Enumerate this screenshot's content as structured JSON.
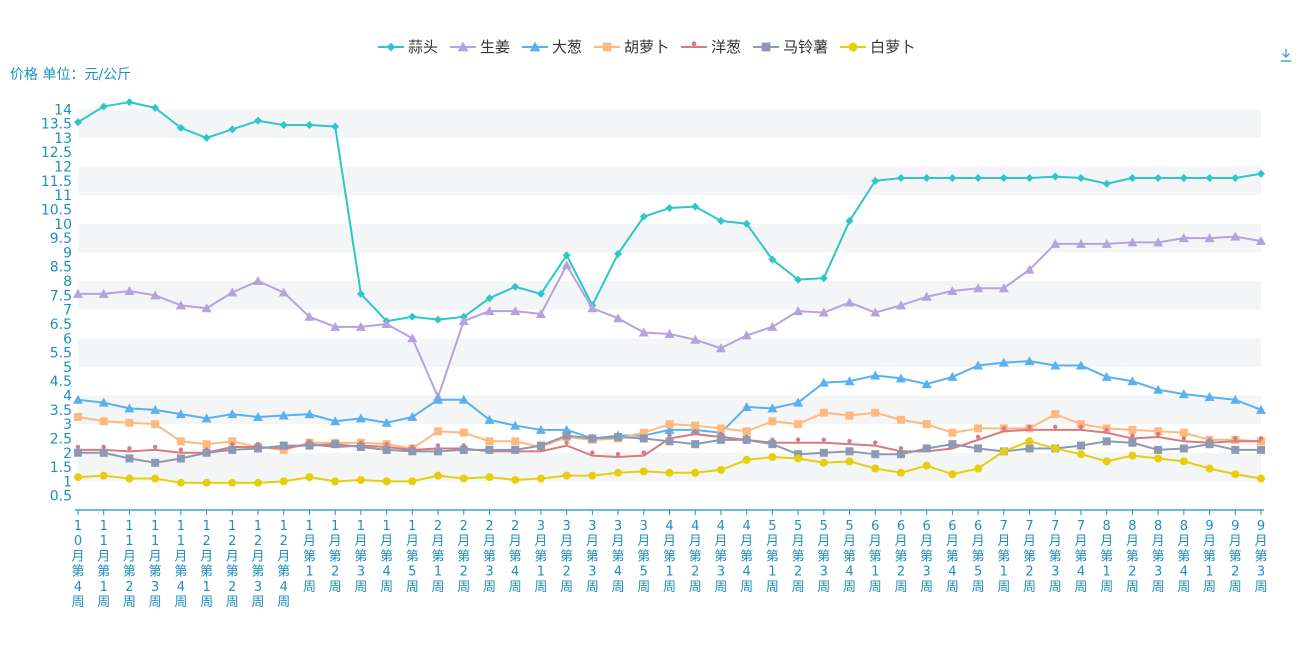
{
  "chart_data": {
    "type": "line",
    "unit_label": "价格 单位：元/公斤",
    "y_ticks": [
      "0.5",
      "1",
      "1.5",
      "2",
      "2.5",
      "3",
      "3.5",
      "4",
      "4.5",
      "5",
      "5.5",
      "6",
      "6.5",
      "7",
      "7.5",
      "8",
      "8.5",
      "9",
      "9.5",
      "10",
      "10.5",
      "11",
      "11.5",
      "12",
      "12.5",
      "13",
      "13.5",
      "14"
    ],
    "ylim": [
      0,
      14.5
    ],
    "grid": "horizontal bands",
    "legend_position": "top-center",
    "categories": [
      "10月第4周",
      "11月第1周",
      "11月第2周",
      "11月第3周",
      "11月第4周",
      "12月第1周",
      "12月第2周",
      "12月第3周",
      "12月第4周",
      "1月第1周",
      "1月第2周",
      "1月第3周",
      "1月第4周",
      "1月第5周",
      "2月第1周",
      "2月第2周",
      "2月第3周",
      "2月第4周",
      "3月第1周",
      "3月第2周",
      "3月第3周",
      "3月第4周",
      "3月第5周",
      "4月第1周",
      "4月第2周",
      "4月第3周",
      "4月第4周",
      "5月第1周",
      "5月第2周",
      "5月第3周",
      "5月第4周",
      "6月第1周",
      "6月第2周",
      "6月第3周",
      "6月第4周",
      "6月第5周",
      "7月第1周",
      "7月第2周",
      "7月第3周",
      "7月第4周",
      "8月第1周",
      "8月第2周",
      "8月第3周",
      "8月第4周",
      "9月第1周",
      "9月第2周",
      "9月第3周"
    ],
    "series": [
      {
        "name": "蒜头",
        "color": "#2ec7c9",
        "marker": "diamond",
        "values": [
          13.55,
          14.1,
          14.25,
          14.05,
          13.35,
          13.0,
          13.3,
          13.6,
          13.45,
          13.45,
          13.4,
          7.55,
          6.6,
          6.75,
          6.65,
          6.75,
          7.4,
          7.8,
          7.55,
          8.9,
          7.15,
          8.95,
          10.25,
          10.55,
          10.6,
          10.1,
          10.0,
          8.75,
          8.05,
          8.1,
          10.1,
          11.5,
          11.6,
          11.6,
          11.6,
          11.6,
          11.6,
          11.6,
          11.65,
          11.6,
          11.4,
          11.6,
          11.6,
          11.6,
          11.6,
          11.6,
          11.75
        ]
      },
      {
        "name": "生姜",
        "color": "#b6a2de",
        "marker": "triangle",
        "values": [
          7.55,
          7.55,
          7.65,
          7.5,
          7.15,
          7.05,
          7.6,
          8.0,
          7.6,
          6.75,
          6.4,
          6.4,
          6.5,
          6.0,
          3.95,
          6.6,
          6.95,
          6.95,
          6.85,
          8.55,
          7.05,
          6.7,
          6.2,
          6.15,
          5.95,
          5.65,
          6.1,
          6.4,
          6.95,
          6.9,
          7.25,
          6.9,
          7.15,
          7.45,
          7.65,
          7.75,
          7.75,
          8.4,
          9.3,
          9.3,
          9.3,
          9.35,
          9.35,
          9.5,
          9.5,
          9.55,
          9.4
        ]
      },
      {
        "name": "大葱",
        "color": "#5ab1ef",
        "marker": "triangle",
        "values": [
          3.85,
          3.75,
          3.55,
          3.5,
          3.35,
          3.2,
          3.35,
          3.25,
          3.3,
          3.35,
          3.1,
          3.2,
          3.05,
          3.25,
          3.85,
          3.85,
          3.15,
          2.95,
          2.8,
          2.8,
          2.5,
          2.6,
          2.6,
          2.8,
          2.8,
          2.7,
          3.6,
          3.55,
          3.75,
          4.45,
          4.5,
          4.7,
          4.6,
          4.4,
          4.65,
          5.05,
          5.15,
          5.2,
          5.05,
          5.05,
          4.65,
          4.5,
          4.2,
          4.05,
          3.95,
          3.85,
          3.5
        ]
      },
      {
        "name": "胡萝卜",
        "color": "#ffb980",
        "marker": "square",
        "values": [
          3.25,
          3.1,
          3.05,
          3.0,
          2.4,
          2.3,
          2.4,
          2.2,
          2.1,
          2.35,
          2.35,
          2.35,
          2.3,
          2.15,
          2.75,
          2.7,
          2.4,
          2.4,
          2.2,
          2.55,
          2.45,
          2.5,
          2.7,
          3.0,
          2.95,
          2.85,
          2.75,
          3.1,
          3.0,
          3.4,
          3.3,
          3.4,
          3.15,
          3.0,
          2.7,
          2.85,
          2.85,
          2.85,
          3.35,
          3.0,
          2.85,
          2.8,
          2.75,
          2.7,
          2.45,
          2.45,
          2.4
        ]
      },
      {
        "name": "洋葱",
        "color": "#d87a80",
        "marker": "pin",
        "values": [
          2.1,
          2.1,
          2.05,
          2.1,
          2.0,
          2.0,
          2.2,
          2.2,
          2.15,
          2.3,
          2.2,
          2.25,
          2.2,
          2.1,
          2.15,
          2.15,
          2.05,
          2.05,
          2.05,
          2.25,
          1.9,
          1.85,
          1.9,
          2.5,
          2.65,
          2.55,
          2.45,
          2.35,
          2.35,
          2.35,
          2.3,
          2.25,
          2.05,
          2.05,
          2.15,
          2.45,
          2.75,
          2.8,
          2.8,
          2.8,
          2.7,
          2.5,
          2.55,
          2.4,
          2.35,
          2.4,
          2.4
        ]
      },
      {
        "name": "马铃薯",
        "color": "#8d98b3",
        "marker": "square",
        "values": [
          2.0,
          2.0,
          1.8,
          1.65,
          1.8,
          2.0,
          2.1,
          2.15,
          2.25,
          2.25,
          2.3,
          2.2,
          2.1,
          2.05,
          2.05,
          2.1,
          2.1,
          2.1,
          2.25,
          2.6,
          2.5,
          2.55,
          2.5,
          2.4,
          2.3,
          2.45,
          2.45,
          2.3,
          1.95,
          2.0,
          2.05,
          1.95,
          1.95,
          2.15,
          2.3,
          2.15,
          2.05,
          2.15,
          2.15,
          2.25,
          2.4,
          2.35,
          2.1,
          2.15,
          2.3,
          2.1,
          2.1
        ]
      },
      {
        "name": "白萝卜",
        "color": "#e5cf0d",
        "marker": "circle",
        "values": [
          1.15,
          1.2,
          1.1,
          1.1,
          0.95,
          0.95,
          0.95,
          0.95,
          1.0,
          1.15,
          1.0,
          1.05,
          1.0,
          1.0,
          1.2,
          1.1,
          1.15,
          1.05,
          1.1,
          1.2,
          1.2,
          1.3,
          1.35,
          1.3,
          1.3,
          1.4,
          1.75,
          1.85,
          1.8,
          1.65,
          1.7,
          1.45,
          1.3,
          1.55,
          1.25,
          1.45,
          2.05,
          2.4,
          2.15,
          1.95,
          1.7,
          1.9,
          1.8,
          1.7,
          1.45,
          1.25,
          1.1
        ]
      }
    ]
  }
}
